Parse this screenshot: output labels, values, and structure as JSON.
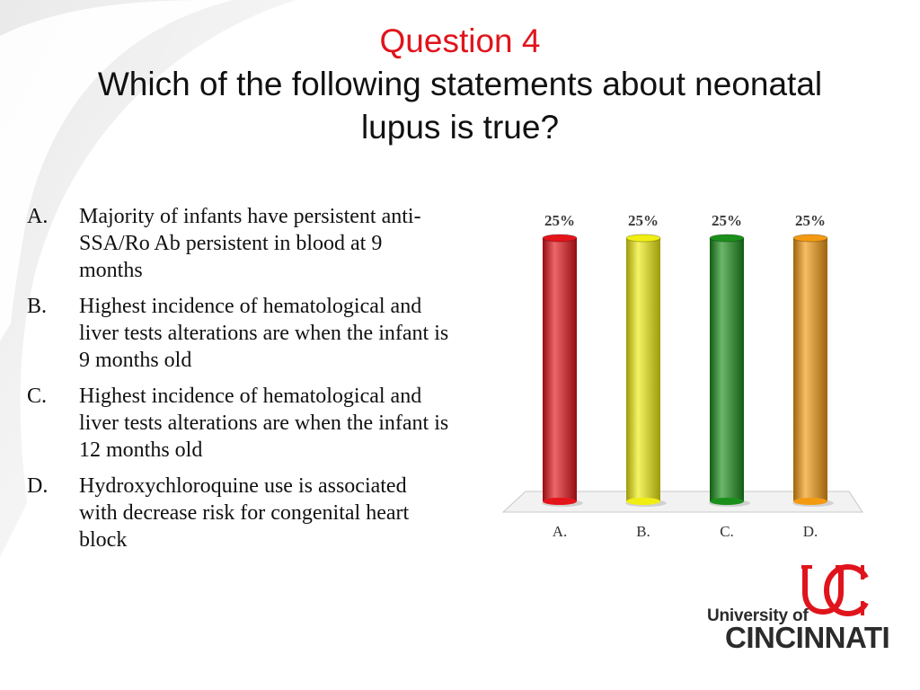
{
  "slide": {
    "question_number": "Question 4",
    "question_line1": "Which of the following statements about neonatal",
    "question_line2": "lupus is true?"
  },
  "options": [
    {
      "letter": "A.",
      "text": "Majority of infants have persistent anti-SSA/Ro Ab persistent in blood at 9 months"
    },
    {
      "letter": "B.",
      "text": "Highest incidence of hematological and liver tests alterations are when the infant is 9 months old"
    },
    {
      "letter": "C.",
      "text": "Highest incidence of hematological and liver tests alterations are when the infant is 12 months old"
    },
    {
      "letter": "D.",
      "text": "Hydroxychloroquine use is associated with decrease risk for congenital heart block"
    }
  ],
  "chart_data": {
    "type": "bar",
    "categories": [
      "A.",
      "B.",
      "C.",
      "D."
    ],
    "values": [
      25,
      25,
      25,
      25
    ],
    "value_labels": [
      "25%",
      "25%",
      "25%",
      "25%"
    ],
    "colors": [
      "#e3141a",
      "#f0ee12",
      "#1b8f1b",
      "#f39a12"
    ],
    "title": "",
    "xlabel": "",
    "ylabel": "",
    "ylim": [
      0,
      25
    ],
    "grid": false
  },
  "logo": {
    "line1": "University of",
    "line2": "CINCINNATI",
    "color": "#e0141c"
  }
}
